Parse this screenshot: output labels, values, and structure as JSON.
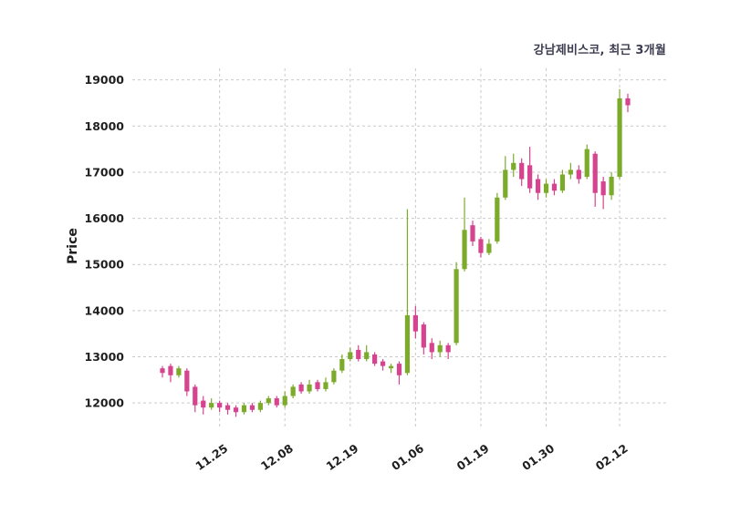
{
  "chart_data": {
    "type": "candlestick",
    "title": "강남제비스코, 최근 3개월",
    "ylabel": "Price",
    "ylim": [
      11450,
      19250
    ],
    "y_ticks": [
      12000,
      13000,
      14000,
      15000,
      16000,
      17000,
      18000,
      19000
    ],
    "x_tick_labels": [
      "11.25",
      "12.08",
      "12.19",
      "01.06",
      "01.19",
      "01.30",
      "02.12"
    ],
    "x_tick_indices": [
      7,
      15,
      23,
      31,
      39,
      47,
      56
    ],
    "grid": true,
    "legend": "none",
    "up_color": "#7cab2c",
    "down_color": "#d6438f",
    "grid_color": "#c9c9c9",
    "tick_color": "#1f1f1f",
    "title_color": "#3c3c50",
    "background_color": "#ffffff",
    "candles": [
      [
        12750,
        12800,
        12550,
        12650
      ],
      [
        12800,
        12850,
        12450,
        12600
      ],
      [
        12600,
        12800,
        12550,
        12750
      ],
      [
        12700,
        12750,
        12150,
        12250
      ],
      [
        12350,
        12400,
        11800,
        11950
      ],
      [
        12050,
        12150,
        11750,
        11900
      ],
      [
        11900,
        12100,
        11850,
        12000
      ],
      [
        12000,
        12050,
        11800,
        11900
      ],
      [
        11950,
        12000,
        11750,
        11850
      ],
      [
        11900,
        11950,
        11700,
        11800
      ],
      [
        11800,
        12000,
        11750,
        11950
      ],
      [
        11950,
        12000,
        11800,
        11850
      ],
      [
        11850,
        12050,
        11800,
        12000
      ],
      [
        12000,
        12150,
        11950,
        12100
      ],
      [
        12100,
        12150,
        11900,
        11950
      ],
      [
        11950,
        12250,
        11900,
        12150
      ],
      [
        12150,
        12400,
        12100,
        12350
      ],
      [
        12400,
        12450,
        12200,
        12250
      ],
      [
        12250,
        12500,
        12200,
        12400
      ],
      [
        12450,
        12500,
        12250,
        12300
      ],
      [
        12300,
        12550,
        12250,
        12450
      ],
      [
        12450,
        12750,
        12400,
        12700
      ],
      [
        12700,
        13050,
        12650,
        12950
      ],
      [
        12950,
        13200,
        12900,
        13100
      ],
      [
        13150,
        13250,
        12900,
        12950
      ],
      [
        12950,
        13250,
        12900,
        13100
      ],
      [
        13050,
        13100,
        12800,
        12850
      ],
      [
        12900,
        12950,
        12700,
        12800
      ],
      [
        12750,
        12850,
        12650,
        12800
      ],
      [
        12850,
        12900,
        12400,
        12600
      ],
      [
        12650,
        16200,
        12600,
        13900
      ],
      [
        13900,
        14100,
        13400,
        13550
      ],
      [
        13700,
        13750,
        13050,
        13200
      ],
      [
        13300,
        13400,
        12950,
        13100
      ],
      [
        13100,
        13350,
        13000,
        13250
      ],
      [
        13250,
        13300,
        12950,
        13100
      ],
      [
        13300,
        15050,
        13250,
        14900
      ],
      [
        14900,
        16450,
        14850,
        15750
      ],
      [
        15850,
        15950,
        15400,
        15500
      ],
      [
        15550,
        15600,
        15150,
        15250
      ],
      [
        15250,
        15550,
        15200,
        15450
      ],
      [
        15500,
        16550,
        15450,
        16450
      ],
      [
        16450,
        17350,
        16400,
        17050
      ],
      [
        17050,
        17400,
        16900,
        17200
      ],
      [
        17200,
        17300,
        16700,
        16850
      ],
      [
        17150,
        17550,
        16550,
        16650
      ],
      [
        16850,
        16950,
        16400,
        16550
      ],
      [
        16550,
        16850,
        16450,
        16750
      ],
      [
        16750,
        16850,
        16500,
        16600
      ],
      [
        16600,
        17050,
        16550,
        16950
      ],
      [
        16950,
        17200,
        16850,
        17050
      ],
      [
        17050,
        17150,
        16750,
        16850
      ],
      [
        16900,
        17600,
        16850,
        17500
      ],
      [
        17400,
        17450,
        16250,
        16550
      ],
      [
        16800,
        16900,
        16200,
        16500
      ],
      [
        16500,
        17000,
        16400,
        16900
      ],
      [
        16900,
        18800,
        16850,
        18600
      ],
      [
        18600,
        18700,
        18300,
        18450
      ]
    ]
  }
}
